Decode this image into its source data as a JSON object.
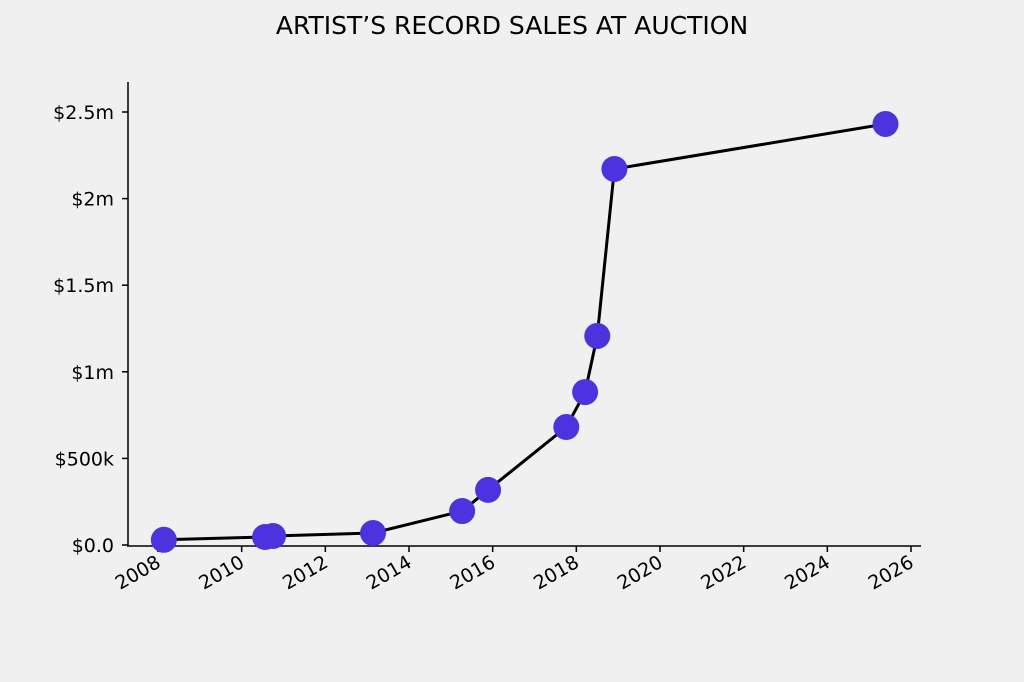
{
  "chart_data": {
    "type": "line",
    "title": "ARTIST’S RECORD SALES AT AUCTION",
    "xlabel": "",
    "ylabel": "",
    "xlim": [
      2007.85,
      2026.25
    ],
    "ylim": [
      0,
      2680000
    ],
    "x_ticks": [
      2008,
      2010,
      2012,
      2014,
      2016,
      2018,
      2020,
      2022,
      2024,
      2026
    ],
    "x_tick_labels": [
      "2008",
      "2010",
      "2012",
      "2014",
      "2016",
      "2018",
      "2020",
      "2022",
      "2024",
      "2026"
    ],
    "y_ticks": [
      0,
      500000,
      1000000,
      1500000,
      2000000,
      2500000
    ],
    "y_tick_labels": [
      "$0.0",
      "$500k",
      "$1m",
      "$1.5m",
      "$2m",
      "$2.5m"
    ],
    "grid": false,
    "series": [
      {
        "name": "Record sales",
        "line_color": "#000000",
        "marker_color": "#4b33e0",
        "x": [
          2008.14,
          2010.56,
          2010.75,
          2013.14,
          2015.27,
          2015.89,
          2017.76,
          2018.21,
          2018.5,
          2018.91,
          2025.39
        ],
        "y": [
          30000,
          46000,
          52000,
          69000,
          196000,
          318000,
          681000,
          883000,
          1207000,
          2171000,
          2431000
        ]
      }
    ]
  }
}
